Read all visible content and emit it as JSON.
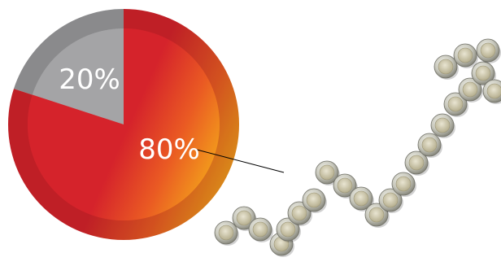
{
  "chart_data": {
    "type": "pie",
    "slices": [
      {
        "label": "20%",
        "value": 20,
        "color": "#9a9a9c"
      },
      {
        "label": "80%",
        "value": 80,
        "color": "#d42a2f"
      }
    ],
    "title": "",
    "legend": "none"
  },
  "decor": {
    "coin_path_icon": "coins-rising-arrow",
    "coin_color": "#c9c9c3"
  }
}
